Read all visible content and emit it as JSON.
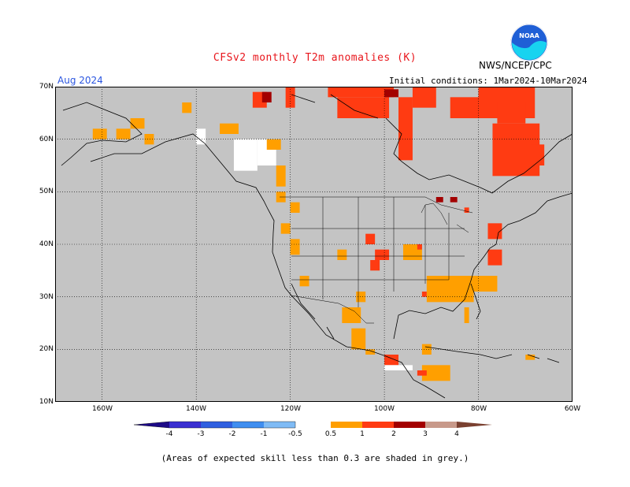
{
  "title": "CFSv2 monthly T2m anomalies (K)",
  "agency": "NWS/NCEP/CPC",
  "logo_text": "NOAA",
  "month": "Aug 2024",
  "initial_conditions": "Initial conditions: 1Mar2024-10Mar2024",
  "lat_labels": [
    "70N",
    "60N",
    "50N",
    "40N",
    "30N",
    "20N",
    "10N"
  ],
  "lon_labels": [
    "160W",
    "140W",
    "120W",
    "100W",
    "80W",
    "60W"
  ],
  "colorbar": {
    "labels": [
      "-4",
      "-3",
      "-2",
      "-1",
      "-0.5",
      "0.5",
      "1",
      "2",
      "3",
      "4"
    ],
    "colors": {
      "lt-4": "#1d0a87",
      "n4_n3": "#3a2fd1",
      "n3_n2": "#2f5fe0",
      "n2_n1": "#3f8ef0",
      "n1_n05": "#7fbbf5",
      "neutral": "#ffffff",
      "p05_1": "#ff9f00",
      "p1_2": "#ff3b12",
      "p2_3": "#a30000",
      "p3_4": "#c8998a",
      "gt4": "#7a4030"
    }
  },
  "map": {
    "lon_range": [
      -170,
      -60
    ],
    "lat_range": [
      10,
      70
    ],
    "skill_mask_color": "#c4c4c4",
    "colors": {
      "orange": "#ff9f00",
      "red": "#ff3b12",
      "darkred": "#a30000",
      "white": "#ffffff"
    },
    "anomaly_patches": [
      {
        "c": "red",
        "lon": -128,
        "lat": 66,
        "w": 3,
        "h": 3
      },
      {
        "c": "darkred",
        "lon": -126,
        "lat": 67,
        "w": 2,
        "h": 2
      },
      {
        "c": "red",
        "lon": -121,
        "lat": 66,
        "w": 2,
        "h": 4
      },
      {
        "c": "red",
        "lon": -112,
        "lat": 68,
        "w": 14,
        "h": 2
      },
      {
        "c": "red",
        "lon": -110,
        "lat": 64,
        "w": 11,
        "h": 4
      },
      {
        "c": "darkred",
        "lon": -100,
        "lat": 68,
        "w": 3,
        "h": 1.5
      },
      {
        "c": "red",
        "lon": -97,
        "lat": 56,
        "w": 3,
        "h": 12
      },
      {
        "c": "red",
        "lon": -94,
        "lat": 66,
        "w": 5,
        "h": 4
      },
      {
        "c": "red",
        "lon": -86,
        "lat": 64,
        "w": 8,
        "h": 4
      },
      {
        "c": "red",
        "lon": -80,
        "lat": 64,
        "w": 12,
        "h": 6
      },
      {
        "c": "red",
        "lon": -77,
        "lat": 53,
        "w": 10,
        "h": 10
      },
      {
        "c": "red",
        "lon": -76,
        "lat": 63,
        "w": 6,
        "h": 4
      },
      {
        "c": "red",
        "lon": -69,
        "lat": 55,
        "w": 3,
        "h": 4
      },
      {
        "c": "orange",
        "lon": -162,
        "lat": 60,
        "w": 3,
        "h": 2
      },
      {
        "c": "orange",
        "lon": -157,
        "lat": 60,
        "w": 3,
        "h": 2
      },
      {
        "c": "orange",
        "lon": -154,
        "lat": 62,
        "w": 3,
        "h": 2
      },
      {
        "c": "orange",
        "lon": -151,
        "lat": 59,
        "w": 2,
        "h": 2
      },
      {
        "c": "orange",
        "lon": -143,
        "lat": 65,
        "w": 2,
        "h": 2
      },
      {
        "c": "orange",
        "lon": -135,
        "lat": 61,
        "w": 4,
        "h": 2
      },
      {
        "c": "white",
        "lon": -140,
        "lat": 59,
        "w": 2,
        "h": 3
      },
      {
        "c": "white",
        "lon": -132,
        "lat": 54,
        "w": 5,
        "h": 6
      },
      {
        "c": "white",
        "lon": -127,
        "lat": 55,
        "w": 4,
        "h": 5
      },
      {
        "c": "orange",
        "lon": -125,
        "lat": 58,
        "w": 3,
        "h": 2
      },
      {
        "c": "orange",
        "lon": -123,
        "lat": 51,
        "w": 2,
        "h": 4
      },
      {
        "c": "orange",
        "lon": -123,
        "lat": 48,
        "w": 2,
        "h": 2
      },
      {
        "c": "orange",
        "lon": -120,
        "lat": 46,
        "w": 2,
        "h": 2
      },
      {
        "c": "orange",
        "lon": -122,
        "lat": 42,
        "w": 2,
        "h": 2
      },
      {
        "c": "orange",
        "lon": -120,
        "lat": 38,
        "w": 2,
        "h": 3
      },
      {
        "c": "orange",
        "lon": -118,
        "lat": 32,
        "w": 2,
        "h": 2
      },
      {
        "c": "orange",
        "lon": -110,
        "lat": 37,
        "w": 2,
        "h": 2
      },
      {
        "c": "red",
        "lon": -104,
        "lat": 40,
        "w": 2,
        "h": 2
      },
      {
        "c": "red",
        "lon": -102,
        "lat": 37,
        "w": 3,
        "h": 2
      },
      {
        "c": "red",
        "lon": -103,
        "lat": 35,
        "w": 2,
        "h": 2
      },
      {
        "c": "orange",
        "lon": -96,
        "lat": 37,
        "w": 4,
        "h": 3
      },
      {
        "c": "red",
        "lon": -93,
        "lat": 39,
        "w": 1,
        "h": 1
      },
      {
        "c": "darkred",
        "lon": -89,
        "lat": 48,
        "w": 1.5,
        "h": 1
      },
      {
        "c": "darkred",
        "lon": -86,
        "lat": 48,
        "w": 1.5,
        "h": 1
      },
      {
        "c": "red",
        "lon": -83,
        "lat": 46,
        "w": 1,
        "h": 1
      },
      {
        "c": "red",
        "lon": -78,
        "lat": 41,
        "w": 3,
        "h": 3
      },
      {
        "c": "red",
        "lon": -78,
        "lat": 36,
        "w": 3,
        "h": 3
      },
      {
        "c": "orange",
        "lon": -91,
        "lat": 29,
        "w": 10,
        "h": 5
      },
      {
        "c": "orange",
        "lon": -83,
        "lat": 31,
        "w": 7,
        "h": 3
      },
      {
        "c": "orange",
        "lon": -83,
        "lat": 25,
        "w": 1,
        "h": 3
      },
      {
        "c": "orange",
        "lon": -107,
        "lat": 20,
        "w": 3,
        "h": 4
      },
      {
        "c": "orange",
        "lon": -109,
        "lat": 25,
        "w": 4,
        "h": 3
      },
      {
        "c": "orange",
        "lon": -104,
        "lat": 19,
        "w": 2,
        "h": 1
      },
      {
        "c": "red",
        "lon": -100,
        "lat": 17,
        "w": 3,
        "h": 2
      },
      {
        "c": "orange",
        "lon": -92,
        "lat": 14,
        "w": 6,
        "h": 3
      },
      {
        "c": "red",
        "lon": -93,
        "lat": 15,
        "w": 2,
        "h": 1
      },
      {
        "c": "orange",
        "lon": -92,
        "lat": 19,
        "w": 2,
        "h": 2
      },
      {
        "c": "white",
        "lon": -100,
        "lat": 16,
        "w": 6,
        "h": 1
      },
      {
        "c": "orange",
        "lon": -70,
        "lat": 18,
        "w": 2,
        "h": 1
      },
      {
        "c": "orange",
        "lon": -106,
        "lat": 29,
        "w": 2,
        "h": 2
      },
      {
        "c": "red",
        "lon": -92,
        "lat": 30,
        "w": 1,
        "h": 1
      }
    ]
  },
  "footnote": "(Areas of expected skill less than 0.3 are shaded in grey.)"
}
